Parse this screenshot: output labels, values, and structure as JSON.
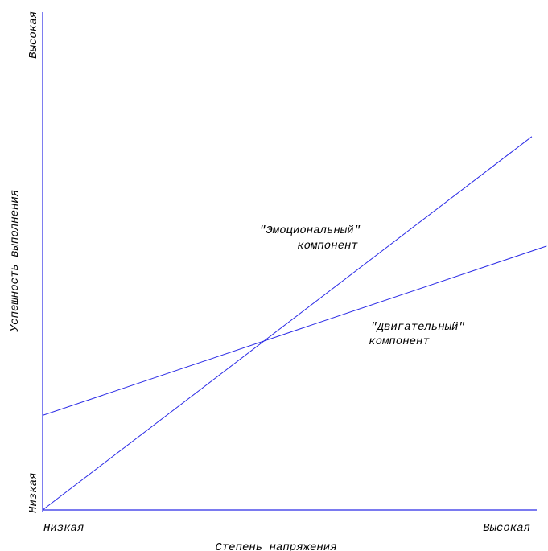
{
  "chart_data": {
    "type": "line",
    "title": "",
    "xlabel": "Степень напряжения",
    "ylabel": "Успешность выполнения",
    "x_tick_labels": {
      "low": "Низкая",
      "high": "Высокая"
    },
    "y_tick_labels": {
      "low": "Низкая",
      "high": "Высокая"
    },
    "xlim": [
      0,
      1
    ],
    "ylim": [
      0,
      1
    ],
    "grid": false,
    "legend": "none",
    "series": [
      {
        "name": "\"Эмоциональный\" компонент",
        "label_lines": [
          "\"Эмоциональный\"",
          "компонент"
        ],
        "x": [
          0,
          0.99
        ],
        "y": [
          0,
          0.75
        ],
        "color": "#2a2ae6"
      },
      {
        "name": "\"Двигательный\" компонент",
        "label_lines": [
          "\"Двигательный\"",
          "компонент"
        ],
        "x": [
          0,
          1.02
        ],
        "y": [
          0.19,
          0.53
        ],
        "color": "#2a2ae6"
      }
    ],
    "axis_color": "#2a2ae6"
  }
}
